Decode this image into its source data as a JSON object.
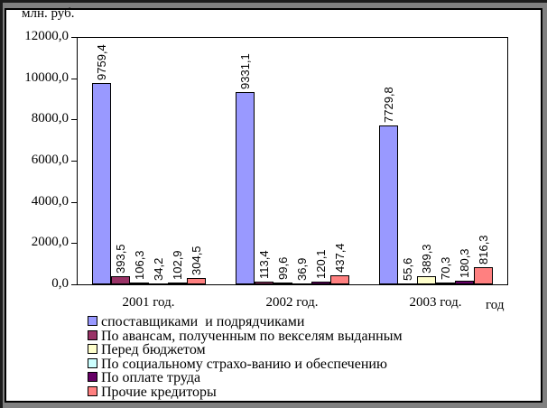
{
  "frame": {
    "outer_background": "#808080",
    "edge_line": "#1c1c1c",
    "chart_background": "#ffffff",
    "chart_border": "#000000"
  },
  "chart_data": {
    "type": "bar",
    "ylabel": "млн. руб.",
    "xlabel": "год",
    "ylim": [
      0,
      12000
    ],
    "grid": false,
    "legend_position": "bottom",
    "bar_value_labels_rotation": "vertical",
    "categories": [
      "2001 год.",
      "2002 год.",
      "2003 год."
    ],
    "yticks": [
      {
        "value": 0,
        "label": "0,0"
      },
      {
        "value": 2000,
        "label": "2000,0"
      },
      {
        "value": 4000,
        "label": "4000,0"
      },
      {
        "value": 6000,
        "label": "6000,0"
      },
      {
        "value": 8000,
        "label": "8000,0"
      },
      {
        "value": 10000,
        "label": "10000,0"
      },
      {
        "value": 12000,
        "label": "12000,0"
      }
    ],
    "series": [
      {
        "name": "споставщиками  и подрядчиками",
        "color": "#9999FF",
        "values": [
          9759.4,
          9331.1,
          7729.8
        ],
        "value_labels": [
          "9759,4",
          "9331,1",
          "7729,8"
        ]
      },
      {
        "name": "По авансам, полученным по векселям выданным",
        "color": "#993366",
        "values": [
          393.5,
          113.4,
          55.6
        ],
        "value_labels": [
          "393,5",
          "113,4",
          "55,6"
        ]
      },
      {
        "name": "Перед бюджетом",
        "color": "#FFFFCC",
        "values": [
          106.3,
          99.6,
          389.3
        ],
        "value_labels": [
          "106,3",
          "99,6",
          "389,3"
        ]
      },
      {
        "name": "По социальному страхо-ванию и обеспечению",
        "color": "#CCFFFF",
        "values": [
          34.2,
          36.9,
          70.3
        ],
        "value_labels": [
          "34,2",
          "36,9",
          "70,3"
        ]
      },
      {
        "name": "По оплате труда",
        "color": "#660066",
        "values": [
          102.9,
          120.1,
          180.3
        ],
        "value_labels": [
          "102,9",
          "120,1",
          "180,3"
        ]
      },
      {
        "name": "Прочие кредиторы",
        "color": "#FF8080",
        "values": [
          304.5,
          437.4,
          816.3
        ],
        "value_labels": [
          "304,5",
          "437,4",
          "816,3"
        ]
      }
    ]
  }
}
